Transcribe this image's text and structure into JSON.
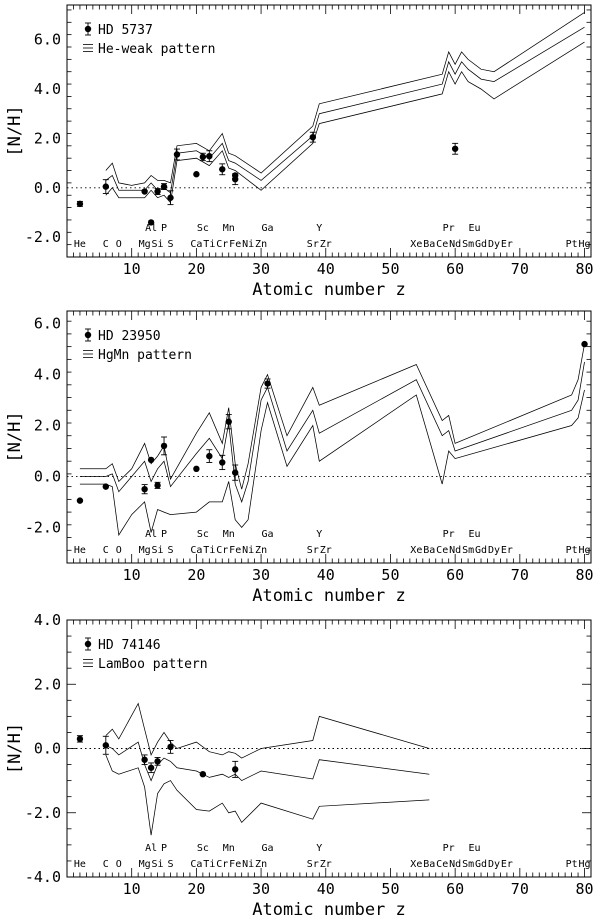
{
  "chart_data": [
    {
      "type": "line",
      "title": "",
      "star": "HD 5737",
      "pattern_label": "He-weak pattern",
      "xlabel": "Atomic number z",
      "ylabel": "[N/H]",
      "xlim": [
        0,
        81
      ],
      "ylim": [
        -2.8,
        7.4
      ],
      "xticks": [
        10,
        20,
        30,
        40,
        50,
        60,
        70,
        80
      ],
      "yticks": [
        -2.0,
        0.0,
        2.0,
        4.0,
        6.0
      ],
      "ytick_labels": [
        "-2.0",
        "0.0",
        "2.0",
        "4.0",
        "6.0"
      ],
      "observations": [
        {
          "z": 2,
          "y": -0.65,
          "err": 0.1
        },
        {
          "z": 6,
          "y": 0.05,
          "err": 0.28
        },
        {
          "z": 12,
          "y": -0.15,
          "err": 0.0
        },
        {
          "z": 13,
          "y": -1.4,
          "err": 0.0
        },
        {
          "z": 14,
          "y": -0.15,
          "err": 0.12
        },
        {
          "z": 15,
          "y": 0.05,
          "err": 0.12
        },
        {
          "z": 16,
          "y": -0.4,
          "err": 0.28
        },
        {
          "z": 17,
          "y": 1.35,
          "err": 0.22
        },
        {
          "z": 20,
          "y": 0.55,
          "err": 0.0
        },
        {
          "z": 21,
          "y": 1.25,
          "err": 0.15
        },
        {
          "z": 22,
          "y": 1.28,
          "err": 0.22
        },
        {
          "z": 24,
          "y": 0.75,
          "err": 0.22
        },
        {
          "z": 26,
          "y": 0.35,
          "err": 0.22
        },
        {
          "z": 26,
          "y": 0.5,
          "err": 0.0
        },
        {
          "z": 38,
          "y": 2.05,
          "err": 0.2
        },
        {
          "z": 60,
          "y": 1.58,
          "err": 0.22
        }
      ],
      "pattern_series": [
        {
          "name": "upper",
          "z": [
            6,
            7,
            8,
            10,
            12,
            13,
            14,
            15,
            16,
            17,
            20,
            22,
            24,
            25,
            26,
            30,
            38,
            39,
            58,
            59,
            60,
            61,
            62,
            64,
            66,
            80
          ],
          "values": [
            0.7,
            1.0,
            0.2,
            0.1,
            0.2,
            0.5,
            0.3,
            0.3,
            0.2,
            1.7,
            1.8,
            1.5,
            2.2,
            1.4,
            1.3,
            0.6,
            2.5,
            3.4,
            4.6,
            5.5,
            5.0,
            5.5,
            5.2,
            4.8,
            4.7,
            7.1
          ]
        },
        {
          "name": "middle",
          "z": [
            6,
            7,
            8,
            10,
            12,
            13,
            14,
            15,
            16,
            17,
            20,
            22,
            24,
            25,
            26,
            30,
            38,
            39,
            58,
            59,
            60,
            61,
            62,
            64,
            66,
            80
          ],
          "values": [
            0.3,
            0.5,
            -0.1,
            -0.1,
            -0.1,
            0.2,
            -0.1,
            0.0,
            -0.2,
            1.4,
            1.5,
            1.2,
            1.8,
            1.1,
            1.0,
            0.3,
            2.1,
            3.0,
            4.2,
            5.1,
            4.6,
            5.1,
            4.8,
            4.4,
            4.3,
            6.5
          ]
        },
        {
          "name": "lower",
          "z": [
            6,
            7,
            8,
            10,
            12,
            13,
            14,
            15,
            16,
            17,
            20,
            22,
            24,
            25,
            26,
            30,
            38,
            39,
            58,
            59,
            60,
            61,
            62,
            64,
            66,
            80
          ],
          "values": [
            -0.3,
            0.0,
            -0.4,
            -0.4,
            -0.4,
            -0.1,
            -0.4,
            -0.3,
            -0.6,
            1.1,
            1.2,
            0.9,
            1.5,
            0.8,
            0.7,
            -0.1,
            1.8,
            2.6,
            3.8,
            4.7,
            4.2,
            4.7,
            4.3,
            4.0,
            3.6,
            5.9
          ]
        }
      ]
    },
    {
      "type": "line",
      "title": "",
      "star": "HD 23950",
      "pattern_label": "HgMn pattern",
      "xlabel": "Atomic number z",
      "ylabel": "[N/H]",
      "xlim": [
        0,
        81
      ],
      "ylim": [
        -3.4,
        6.5
      ],
      "xticks": [
        10,
        20,
        30,
        40,
        50,
        60,
        70,
        80
      ],
      "yticks": [
        -2.0,
        0.0,
        2.0,
        4.0,
        6.0
      ],
      "ytick_labels": [
        "-2.0",
        "0.0",
        "2.0",
        "4.0",
        "6.0"
      ],
      "observations": [
        {
          "z": 2,
          "y": -0.95,
          "err": 0.0
        },
        {
          "z": 6,
          "y": -0.4,
          "err": 0.0
        },
        {
          "z": 12,
          "y": -0.5,
          "err": 0.18
        },
        {
          "z": 13,
          "y": 0.65,
          "err": 0.0
        },
        {
          "z": 14,
          "y": -0.35,
          "err": 0.12
        },
        {
          "z": 15,
          "y": 1.2,
          "err": 0.35
        },
        {
          "z": 20,
          "y": 0.3,
          "err": 0.0
        },
        {
          "z": 22,
          "y": 0.8,
          "err": 0.25
        },
        {
          "z": 24,
          "y": 0.55,
          "err": 0.28
        },
        {
          "z": 25,
          "y": 2.15,
          "err": 0.28
        },
        {
          "z": 26,
          "y": 0.15,
          "err": 0.3
        },
        {
          "z": 31,
          "y": 3.65,
          "err": 0.18
        },
        {
          "z": 80,
          "y": 5.2,
          "err": 0.0
        }
      ],
      "pattern_series": [
        {
          "name": "upper",
          "z": [
            2,
            6,
            7,
            8,
            10,
            12,
            13,
            14,
            15,
            16,
            20,
            22,
            24,
            25,
            26,
            27,
            28,
            30,
            31,
            34,
            38,
            39,
            54,
            58,
            59,
            60,
            78,
            79,
            80
          ],
          "values": [
            0.3,
            0.3,
            0.5,
            -0.2,
            0.3,
            1.3,
            0.5,
            0.8,
            1.2,
            -0.1,
            1.7,
            2.5,
            1.3,
            2.7,
            0.5,
            -0.5,
            0.5,
            3.5,
            4.0,
            1.6,
            3.5,
            2.8,
            4.4,
            2.2,
            2.4,
            1.3,
            3.2,
            3.8,
            5.2
          ]
        },
        {
          "name": "middle",
          "z": [
            2,
            6,
            7,
            8,
            10,
            12,
            13,
            14,
            15,
            16,
            20,
            22,
            24,
            25,
            26,
            27,
            28,
            30,
            31,
            34,
            38,
            39,
            54,
            58,
            59,
            60,
            78,
            79,
            80
          ],
          "values": [
            0.0,
            0.0,
            0.1,
            -0.6,
            0.0,
            0.6,
            -0.2,
            0.3,
            0.6,
            -0.4,
            0.9,
            1.5,
            0.7,
            2.1,
            -0.3,
            -1.0,
            -0.2,
            3.0,
            3.5,
            1.0,
            2.6,
            1.7,
            3.8,
            1.6,
            1.8,
            1.0,
            2.6,
            3.0,
            4.5
          ]
        },
        {
          "name": "lower",
          "z": [
            2,
            6,
            7,
            8,
            10,
            12,
            13,
            14,
            15,
            16,
            20,
            22,
            24,
            25,
            26,
            27,
            28,
            30,
            31,
            34,
            38,
            39,
            54,
            58,
            59,
            60,
            78,
            79,
            80
          ],
          "values": [
            -0.3,
            -0.3,
            -0.4,
            -2.3,
            -1.5,
            -1.0,
            -2.2,
            -1.3,
            -1.4,
            -1.5,
            -1.4,
            -1.0,
            -1.0,
            -0.2,
            -1.7,
            -2.0,
            -1.7,
            1.8,
            2.9,
            0.4,
            2.0,
            0.6,
            3.2,
            -0.3,
            1.0,
            0.7,
            2.0,
            2.3,
            3.4
          ]
        }
      ]
    },
    {
      "type": "line",
      "title": "",
      "star": "HD 74146",
      "pattern_label": "LamBoo pattern",
      "xlabel": "Atomic number z",
      "ylabel": "[N/H]",
      "xlim": [
        0,
        81
      ],
      "ylim": [
        -4.0,
        4.0
      ],
      "xticks": [
        10,
        20,
        30,
        40,
        50,
        60,
        70,
        80
      ],
      "yticks": [
        -4.0,
        -2.0,
        0.0,
        2.0,
        4.0
      ],
      "ytick_labels": [
        "-4.0",
        "-2.0",
        "0.0",
        "2.0",
        "4.0"
      ],
      "observations": [
        {
          "z": 2,
          "y": 0.3,
          "err": 0.1
        },
        {
          "z": 6,
          "y": 0.1,
          "err": 0.28
        },
        {
          "z": 12,
          "y": -0.35,
          "err": 0.15
        },
        {
          "z": 13,
          "y": -0.6,
          "err": 0.15
        },
        {
          "z": 14,
          "y": -0.4,
          "err": 0.12
        },
        {
          "z": 16,
          "y": 0.05,
          "err": 0.2
        },
        {
          "z": 21,
          "y": -0.8,
          "err": 0.0
        },
        {
          "z": 26,
          "y": -0.65,
          "err": 0.25
        }
      ],
      "pattern_series": [
        {
          "name": "upper",
          "z": [
            6,
            7,
            8,
            11,
            12,
            13,
            14,
            15,
            16,
            17,
            20,
            22,
            24,
            25,
            26,
            27,
            30,
            38,
            39,
            56
          ],
          "values": [
            0.4,
            0.6,
            0.3,
            1.4,
            0.6,
            -0.2,
            0.2,
            0.5,
            0.2,
            0.0,
            0.2,
            -0.1,
            -0.2,
            -0.1,
            -0.15,
            -0.3,
            0.0,
            0.25,
            1.0,
            0.0
          ]
        },
        {
          "name": "middle",
          "z": [
            6,
            7,
            8,
            11,
            12,
            13,
            14,
            15,
            16,
            17,
            20,
            22,
            24,
            25,
            26,
            27,
            30,
            38,
            39,
            56
          ],
          "values": [
            0.1,
            0.0,
            -0.2,
            0.2,
            -0.5,
            -1.0,
            -0.5,
            -0.3,
            -0.4,
            -0.6,
            -0.7,
            -0.9,
            -0.8,
            -0.9,
            -0.8,
            -1.0,
            -0.7,
            -0.95,
            -0.35,
            -0.8
          ]
        },
        {
          "name": "lower",
          "z": [
            6,
            7,
            8,
            11,
            12,
            13,
            14,
            15,
            16,
            17,
            20,
            22,
            24,
            25,
            26,
            27,
            30,
            38,
            39,
            56
          ],
          "values": [
            -0.2,
            -0.7,
            -0.8,
            -0.6,
            -1.2,
            -2.7,
            -1.4,
            -1.1,
            -1.0,
            -1.3,
            -1.9,
            -1.95,
            -1.7,
            -2.0,
            -1.95,
            -2.3,
            -1.7,
            -2.2,
            -1.8,
            -1.6
          ]
        }
      ]
    }
  ],
  "element_labels": {
    "upper": [
      {
        "z": 13,
        "text": "Al"
      },
      {
        "z": 15,
        "text": "P"
      },
      {
        "z": 21,
        "text": "Sc"
      },
      {
        "z": 25,
        "text": "Mn"
      },
      {
        "z": 31,
        "text": "Ga"
      },
      {
        "z": 39,
        "text": "Y"
      },
      {
        "z": 59,
        "text": "Pr"
      },
      {
        "z": 63,
        "text": "Eu"
      }
    ],
    "lower": [
      {
        "z": 2,
        "text": "He"
      },
      {
        "z": 6,
        "text": "C"
      },
      {
        "z": 8,
        "text": "O"
      },
      {
        "z": 12,
        "text": "Mg"
      },
      {
        "z": 14,
        "text": "Si"
      },
      {
        "z": 16,
        "text": "S"
      },
      {
        "z": 20,
        "text": "Ca"
      },
      {
        "z": 22,
        "text": "Ti"
      },
      {
        "z": 24,
        "text": "Cr"
      },
      {
        "z": 26,
        "text": "Fe"
      },
      {
        "z": 28,
        "text": "Ni"
      },
      {
        "z": 30,
        "text": "Zn"
      },
      {
        "z": 38,
        "text": "Sr"
      },
      {
        "z": 40,
        "text": "Zr"
      },
      {
        "z": 54,
        "text": "Xe"
      },
      {
        "z": 56,
        "text": "Ba"
      },
      {
        "z": 58,
        "text": "Ce"
      },
      {
        "z": 60,
        "text": "Nd"
      },
      {
        "z": 62,
        "text": "Sm"
      },
      {
        "z": 64,
        "text": "Gd"
      },
      {
        "z": 66,
        "text": "Dy"
      },
      {
        "z": 68,
        "text": "Er"
      },
      {
        "z": 78,
        "text": "Pt"
      },
      {
        "z": 80,
        "text": "Hg"
      }
    ]
  }
}
